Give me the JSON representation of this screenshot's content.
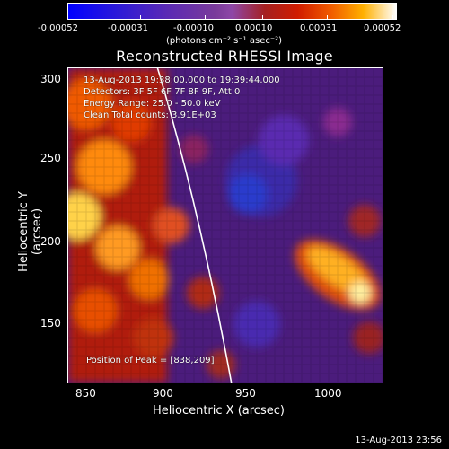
{
  "colorbar": {
    "ticks": [
      "-0.00052",
      "-0.00031",
      "-0.00010",
      "0.00010",
      "0.00031",
      "0.00052"
    ],
    "units": "(photons cm⁻² s⁻¹ asec⁻²)"
  },
  "plot": {
    "title": "Reconstructed RHESSI Image",
    "annotations": {
      "time": "13-Aug-2013 19:38:00.000 to 19:39:44.000",
      "detectors": "Detectors: 3F 5F 6F 7F 8F 9F, Att 0",
      "energy": "Energy Range: 25.0 - 50.0 keV",
      "clean": "Clean    Total counts: 3.91E+03",
      "peak": "Position of Peak = [838,209]"
    },
    "xlabel": "Heliocentric X (arcsec)",
    "ylabel": "Heliocentric Y (arcsec)",
    "xticks": [
      "850",
      "900",
      "950",
      "1000"
    ],
    "yticks": [
      "300",
      "250",
      "200",
      "150"
    ]
  },
  "footer": {
    "date": "13-Aug-2013 23:56"
  }
}
